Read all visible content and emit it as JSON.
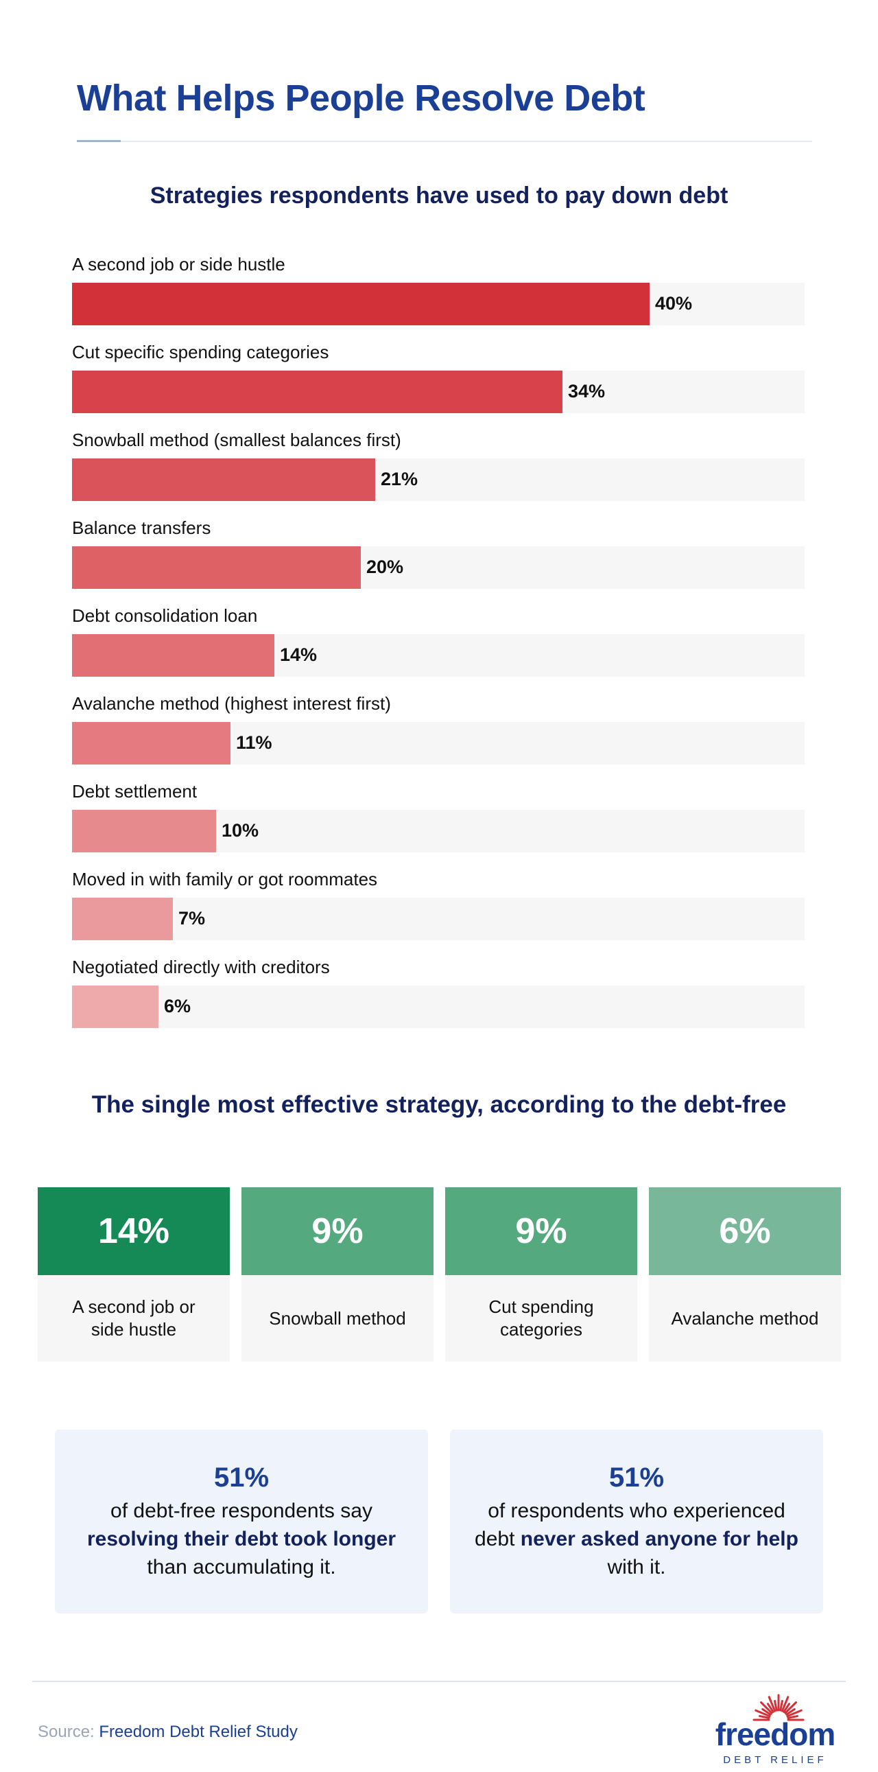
{
  "header": {
    "title": "What Helps People Resolve Debt"
  },
  "chart_data": {
    "type": "bar",
    "orientation": "horizontal",
    "title": "Strategies respondents have used to pay down debt",
    "xlim": [
      0,
      100
    ],
    "categories": [
      "A second job or side hustle",
      "Cut specific spending categories",
      "Snowball method (smallest balances first)",
      "Balance transfers",
      "Debt consolidation loan",
      "Avalanche method (highest interest first)",
      "Debt settlement",
      "Moved in with family or got roommates",
      "Negotiated directly with creditors"
    ],
    "values": [
      40,
      34,
      21,
      20,
      14,
      11,
      10,
      7,
      6
    ],
    "value_labels": [
      "40%",
      "34%",
      "21%",
      "20%",
      "14%",
      "11%",
      "10%",
      "7%",
      "6%"
    ],
    "colors": [
      "#d3313a",
      "#d8424b",
      "#db535a",
      "#de6166",
      "#e26f74",
      "#e57b80",
      "#e78a8d",
      "#ea9a9d",
      "#eeaaab"
    ]
  },
  "effective": {
    "title": "The single most effective strategy, according to the debt-free",
    "cards": [
      {
        "value": "14%",
        "label": "A second job or side hustle",
        "color": "#158a56"
      },
      {
        "value": "9%",
        "label": "Snowball method",
        "color": "#55a97f"
      },
      {
        "value": "9%",
        "label": "Cut spending categories",
        "color": "#55a97f"
      },
      {
        "value": "6%",
        "label": "Avalanche method",
        "color": "#79b79a"
      }
    ]
  },
  "stats": [
    {
      "value": "51%",
      "pre": "of debt-free respondents say ",
      "highlight": "resolving their debt took longer",
      "post": " than accumulating it."
    },
    {
      "value": "51%",
      "pre": "of respondents who experienced debt ",
      "highlight": "never asked anyone for help",
      "post": " with it."
    }
  ],
  "footer": {
    "source_label": "Source:",
    "source_name": "Freedom Debt Relief Study",
    "logo_word": "freedom",
    "logo_sub": "DEBT RELIEF"
  }
}
